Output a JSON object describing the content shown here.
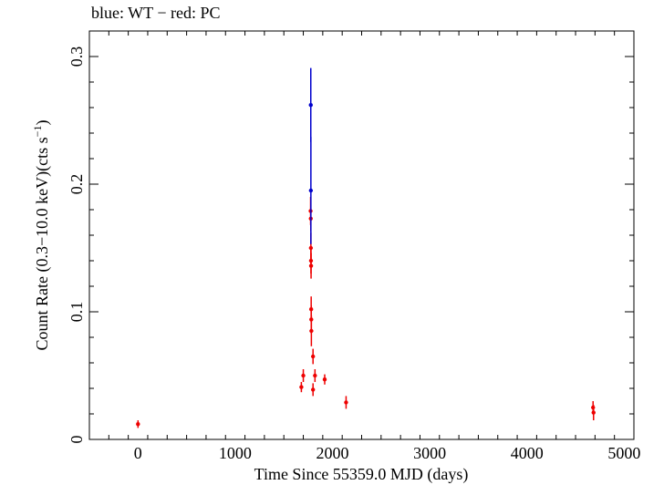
{
  "chart_data": {
    "type": "scatter",
    "title": "blue: WT − red: PC",
    "xlabel": "Time Since 55359.0 MJD (days)",
    "ylabel_main": "Count Rate (0.3−10.0 keV)(cts s",
    "ylabel_sup": "−1",
    "ylabel_end": ")",
    "xlim": [
      -500,
      5100
    ],
    "ylim": [
      0,
      0.32
    ],
    "xticks": [
      {
        "value": 0,
        "label": "0"
      },
      {
        "value": 1000,
        "label": "1000"
      },
      {
        "value": 2000,
        "label": "2000"
      },
      {
        "value": 3000,
        "label": "3000"
      },
      {
        "value": 4000,
        "label": "4000"
      },
      {
        "value": 5000,
        "label": "5000"
      }
    ],
    "yticks": [
      {
        "value": 0,
        "label": "0"
      },
      {
        "value": 0.1,
        "label": "0.1"
      },
      {
        "value": 0.2,
        "label": "0.2"
      },
      {
        "value": 0.3,
        "label": "0.3"
      }
    ],
    "series": [
      {
        "color": "#0000cc",
        "points": [
          {
            "x": 1777,
            "y": 0.262,
            "err": 0.029
          },
          {
            "x": 1778,
            "y": 0.195,
            "err": 0.042
          }
        ]
      },
      {
        "color": "#ee0000",
        "points": [
          {
            "x": 0,
            "y": 0.012,
            "err": 0.003
          },
          {
            "x": 1680,
            "y": 0.041,
            "err": 0.004
          },
          {
            "x": 1700,
            "y": 0.05,
            "err": 0.005
          },
          {
            "x": 1775,
            "y": 0.179,
            "err": 0.011
          },
          {
            "x": 1777,
            "y": 0.173,
            "err": 0.01
          },
          {
            "x": 1778,
            "y": 0.15,
            "err": 0.012
          },
          {
            "x": 1779,
            "y": 0.14,
            "err": 0.01
          },
          {
            "x": 1780,
            "y": 0.136,
            "err": 0.01
          },
          {
            "x": 1781,
            "y": 0.102,
            "err": 0.01
          },
          {
            "x": 1782,
            "y": 0.094,
            "err": 0.011
          },
          {
            "x": 1783,
            "y": 0.085,
            "err": 0.012
          },
          {
            "x": 1800,
            "y": 0.065,
            "err": 0.006
          },
          {
            "x": 1800,
            "y": 0.039,
            "err": 0.005
          },
          {
            "x": 1820,
            "y": 0.05,
            "err": 0.005
          },
          {
            "x": 1920,
            "y": 0.047,
            "err": 0.004
          },
          {
            "x": 2140,
            "y": 0.029,
            "err": 0.005
          },
          {
            "x": 4680,
            "y": 0.025,
            "err": 0.005
          },
          {
            "x": 4685,
            "y": 0.021,
            "err": 0.006
          }
        ]
      }
    ]
  }
}
